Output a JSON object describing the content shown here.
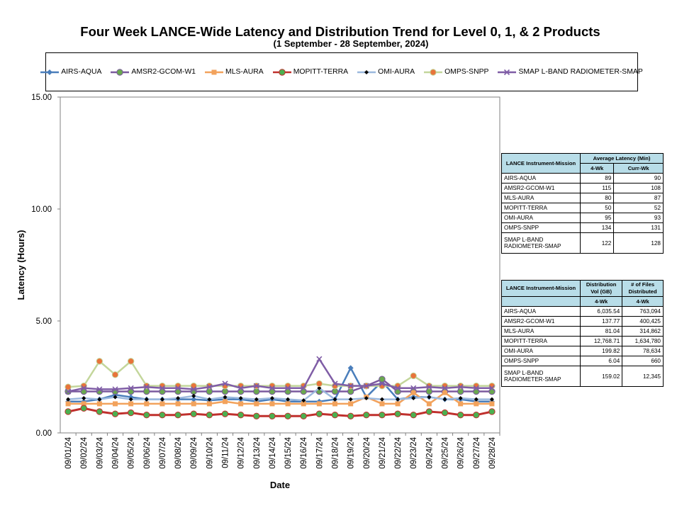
{
  "chart_data": {
    "type": "line",
    "title": "Four Week LANCE-Wide Latency and Distribution Trend for Level 0, 1, & 2 Products",
    "subtitle": "(1  September   -  28  September,  2024)",
    "xlabel": "Date",
    "ylabel": "Latency (Hours)",
    "ylim": [
      0,
      15
    ],
    "yticks": [
      "0.00",
      "5.00",
      "10.00",
      "15.00"
    ],
    "legend_position": "top",
    "categories": [
      "09/01/24",
      "09/02/24",
      "09/03/24",
      "09/04/24",
      "09/05/24",
      "09/06/24",
      "09/07/24",
      "09/08/24",
      "09/09/24",
      "09/10/24",
      "09/11/24",
      "09/12/24",
      "09/13/24",
      "09/14/24",
      "09/15/24",
      "09/16/24",
      "09/17/24",
      "09/18/24",
      "09/19/24",
      "09/20/24",
      "09/21/24",
      "09/22/24",
      "09/23/24",
      "09/24/24",
      "09/25/24",
      "09/26/24",
      "09/27/24",
      "09/28/24"
    ],
    "series": [
      {
        "name": "AIRS-AQUA",
        "color": "#4a7ebb",
        "marker": "diamond",
        "values": [
          1.4,
          1.4,
          1.5,
          1.7,
          1.6,
          1.5,
          1.5,
          1.5,
          1.5,
          1.45,
          1.5,
          1.5,
          1.4,
          1.5,
          1.4,
          1.4,
          1.4,
          1.5,
          2.9,
          1.6,
          2.3,
          1.5,
          1.6,
          1.6,
          1.5,
          1.5,
          1.4,
          1.4
        ]
      },
      {
        "name": "AMSR2-GCOM-W1",
        "color": "#7b5a9e",
        "marker": "circle",
        "values": [
          1.85,
          1.85,
          1.85,
          1.85,
          1.85,
          1.85,
          1.85,
          1.85,
          1.85,
          1.85,
          1.85,
          1.85,
          1.85,
          1.85,
          1.85,
          1.85,
          1.85,
          1.85,
          1.85,
          2.1,
          2.4,
          1.85,
          1.85,
          1.85,
          1.85,
          1.85,
          1.85,
          1.85
        ]
      },
      {
        "name": "MLS-AURA",
        "color": "#f2a25c",
        "marker": "square",
        "values": [
          1.3,
          1.3,
          1.3,
          1.3,
          1.3,
          1.3,
          1.3,
          1.3,
          1.3,
          1.3,
          1.4,
          1.3,
          1.3,
          1.3,
          1.3,
          1.3,
          1.3,
          1.3,
          1.3,
          1.6,
          1.3,
          1.3,
          1.8,
          1.3,
          1.8,
          1.3,
          1.3,
          1.3
        ]
      },
      {
        "name": "MOPITT-TERRA",
        "color": "#c0302d",
        "marker": "circle",
        "values": [
          0.95,
          1.1,
          0.95,
          0.85,
          0.9,
          0.8,
          0.8,
          0.8,
          0.85,
          0.8,
          0.85,
          0.8,
          0.75,
          0.75,
          0.75,
          0.75,
          0.85,
          0.8,
          0.75,
          0.8,
          0.8,
          0.85,
          0.8,
          0.95,
          0.9,
          0.8,
          0.8,
          0.95
        ]
      },
      {
        "name": "OMI-AURA",
        "color": "#9cb9de",
        "marker": "dot",
        "values": [
          1.5,
          1.55,
          1.5,
          1.6,
          1.5,
          1.5,
          1.5,
          1.55,
          1.65,
          1.5,
          1.6,
          1.55,
          1.5,
          1.55,
          1.5,
          1.45,
          2.0,
          1.5,
          1.5,
          1.55,
          1.5,
          1.5,
          1.55,
          1.6,
          1.5,
          1.55,
          1.5,
          1.5
        ]
      },
      {
        "name": "OMPS-SNPP",
        "color": "#c3d69b",
        "marker": "circle",
        "values": [
          2.05,
          2.1,
          3.2,
          2.6,
          3.2,
          2.1,
          2.1,
          2.1,
          2.1,
          2.1,
          2.1,
          2.1,
          2.1,
          2.1,
          2.1,
          2.1,
          2.2,
          2.1,
          2.1,
          2.1,
          2.1,
          2.1,
          2.55,
          2.1,
          2.1,
          2.1,
          2.1,
          2.1
        ]
      },
      {
        "name": "SMAP L-BAND RADIOMETER-SMAP",
        "color": "#7f5da6",
        "marker": "x",
        "values": [
          1.85,
          2.0,
          1.95,
          1.95,
          2.0,
          2.05,
          2.0,
          2.0,
          1.95,
          2.05,
          2.2,
          2.0,
          2.1,
          2.0,
          2.0,
          2.0,
          3.3,
          2.2,
          2.1,
          2.1,
          2.2,
          2.0,
          2.0,
          2.05,
          2.0,
          2.05,
          2.0,
          2.0
        ]
      }
    ]
  },
  "latency_table": {
    "header_col1": "LANCE Instrument-Mission",
    "header_group": "Average Latency (Min)",
    "sub_headers": [
      "4-Wk",
      "Curr-Wk"
    ],
    "rows": [
      {
        "name": "AIRS-AQUA",
        "a": "89",
        "b": "90"
      },
      {
        "name": "AMSR2-GCOM-W1",
        "a": "115",
        "b": "108"
      },
      {
        "name": "MLS-AURA",
        "a": "80",
        "b": "87"
      },
      {
        "name": "MOPITT-TERRA",
        "a": "50",
        "b": "52"
      },
      {
        "name": "OMI-AURA",
        "a": "95",
        "b": "93"
      },
      {
        "name": "OMPS-SNPP",
        "a": "134",
        "b": "131"
      },
      {
        "name": "SMAP L-BAND RADIOMETER-SMAP",
        "a": "122",
        "b": "128"
      }
    ]
  },
  "distribution_table": {
    "header_col1": "LANCE Instrument-Mission",
    "header_col2": "Distribution Vol (GB)",
    "header_col3": "# of Files Distributed",
    "sub_headers": [
      "4-Wk",
      "4-Wk"
    ],
    "rows": [
      {
        "name": "AIRS-AQUA",
        "a": "6,035.54",
        "b": "763,094"
      },
      {
        "name": "AMSR2-GCOM-W1",
        "a": "137.77",
        "b": "400,425"
      },
      {
        "name": "MLS-AURA",
        "a": "81.04",
        "b": "314,862"
      },
      {
        "name": "MOPITT-TERRA",
        "a": "12,768.71",
        "b": "1,634,780"
      },
      {
        "name": "OMI-AURA",
        "a": "199.82",
        "b": "78,634"
      },
      {
        "name": "OMPS-SNPP",
        "a": "6.04",
        "b": "660"
      },
      {
        "name": "SMAP L-BAND RADIOMETER-SMAP",
        "a": "159.02",
        "b": "12,345"
      }
    ]
  }
}
